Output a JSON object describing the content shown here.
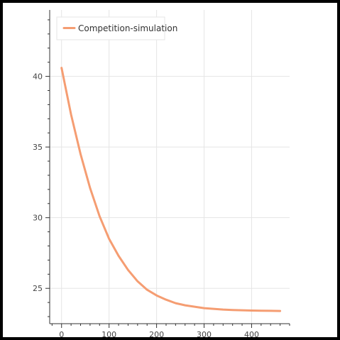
{
  "chart_data": {
    "type": "line",
    "title": "",
    "xlabel": "",
    "ylabel": "",
    "xlim": [
      -25,
      480
    ],
    "ylim": [
      22.5,
      44.7
    ],
    "xticks": [
      0,
      100,
      200,
      300,
      400
    ],
    "yticks": [
      25,
      30,
      35,
      40
    ],
    "xtick_labels": [
      "0",
      "100",
      "200",
      "300",
      "400"
    ],
    "ytick_labels": [
      "25",
      "30",
      "35",
      "40"
    ],
    "grid": true,
    "legend_position": "top-left",
    "series": [
      {
        "name": "Competition-simulation",
        "color": "#f59d72",
        "x": [
          0,
          20,
          40,
          60,
          80,
          100,
          120,
          140,
          160,
          180,
          200,
          220,
          240,
          260,
          280,
          300,
          320,
          340,
          360,
          380,
          400,
          420,
          440,
          460
        ],
        "y": [
          40.6,
          37.3,
          34.5,
          32.1,
          30.1,
          28.5,
          27.3,
          26.3,
          25.5,
          24.9,
          24.5,
          24.2,
          23.95,
          23.8,
          23.7,
          23.6,
          23.55,
          23.5,
          23.47,
          23.45,
          23.43,
          23.42,
          23.41,
          23.4
        ]
      }
    ]
  }
}
